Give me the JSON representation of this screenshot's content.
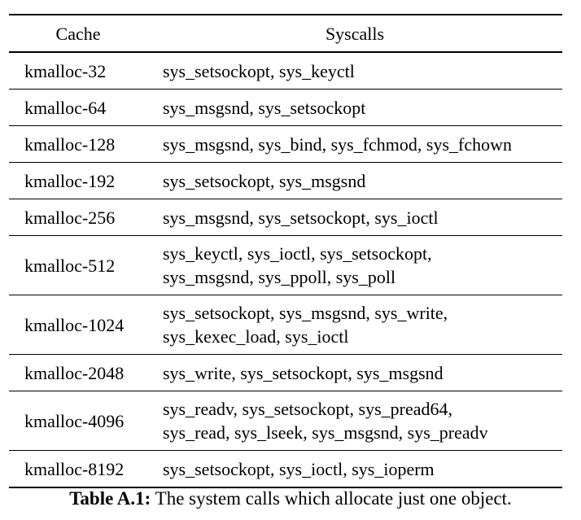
{
  "table": {
    "headers": {
      "cache": "Cache",
      "syscalls": "Syscalls"
    },
    "rows": [
      {
        "cache": "kmalloc-32",
        "syscalls": [
          "sys_setsockopt, sys_keyctl"
        ]
      },
      {
        "cache": "kmalloc-64",
        "syscalls": [
          "sys_msgsnd, sys_setsockopt"
        ]
      },
      {
        "cache": "kmalloc-128",
        "syscalls": [
          "sys_msgsnd, sys_bind, sys_fchmod, sys_fchown"
        ]
      },
      {
        "cache": "kmalloc-192",
        "syscalls": [
          "sys_setsockopt, sys_msgsnd"
        ]
      },
      {
        "cache": "kmalloc-256",
        "syscalls": [
          "sys_msgsnd, sys_setsockopt, sys_ioctl"
        ]
      },
      {
        "cache": "kmalloc-512",
        "syscalls": [
          "sys_keyctl, sys_ioctl, sys_setsockopt,",
          "sys_msgsnd, sys_ppoll, sys_poll"
        ]
      },
      {
        "cache": "kmalloc-1024",
        "syscalls": [
          "sys_setsockopt, sys_msgsnd, sys_write,",
          "sys_kexec_load, sys_ioctl"
        ]
      },
      {
        "cache": "kmalloc-2048",
        "syscalls": [
          "sys_write, sys_setsockopt, sys_msgsnd"
        ]
      },
      {
        "cache": "kmalloc-4096",
        "syscalls": [
          "sys_readv, sys_setsockopt, sys_pread64,",
          "sys_read, sys_lseek, sys_msgsnd, sys_preadv"
        ]
      },
      {
        "cache": "kmalloc-8192",
        "syscalls": [
          "sys_setsockopt, sys_ioctl, sys_ioperm"
        ]
      }
    ]
  },
  "caption": {
    "label": "Table A.1:",
    "text": " The system calls which allocate just one object."
  }
}
